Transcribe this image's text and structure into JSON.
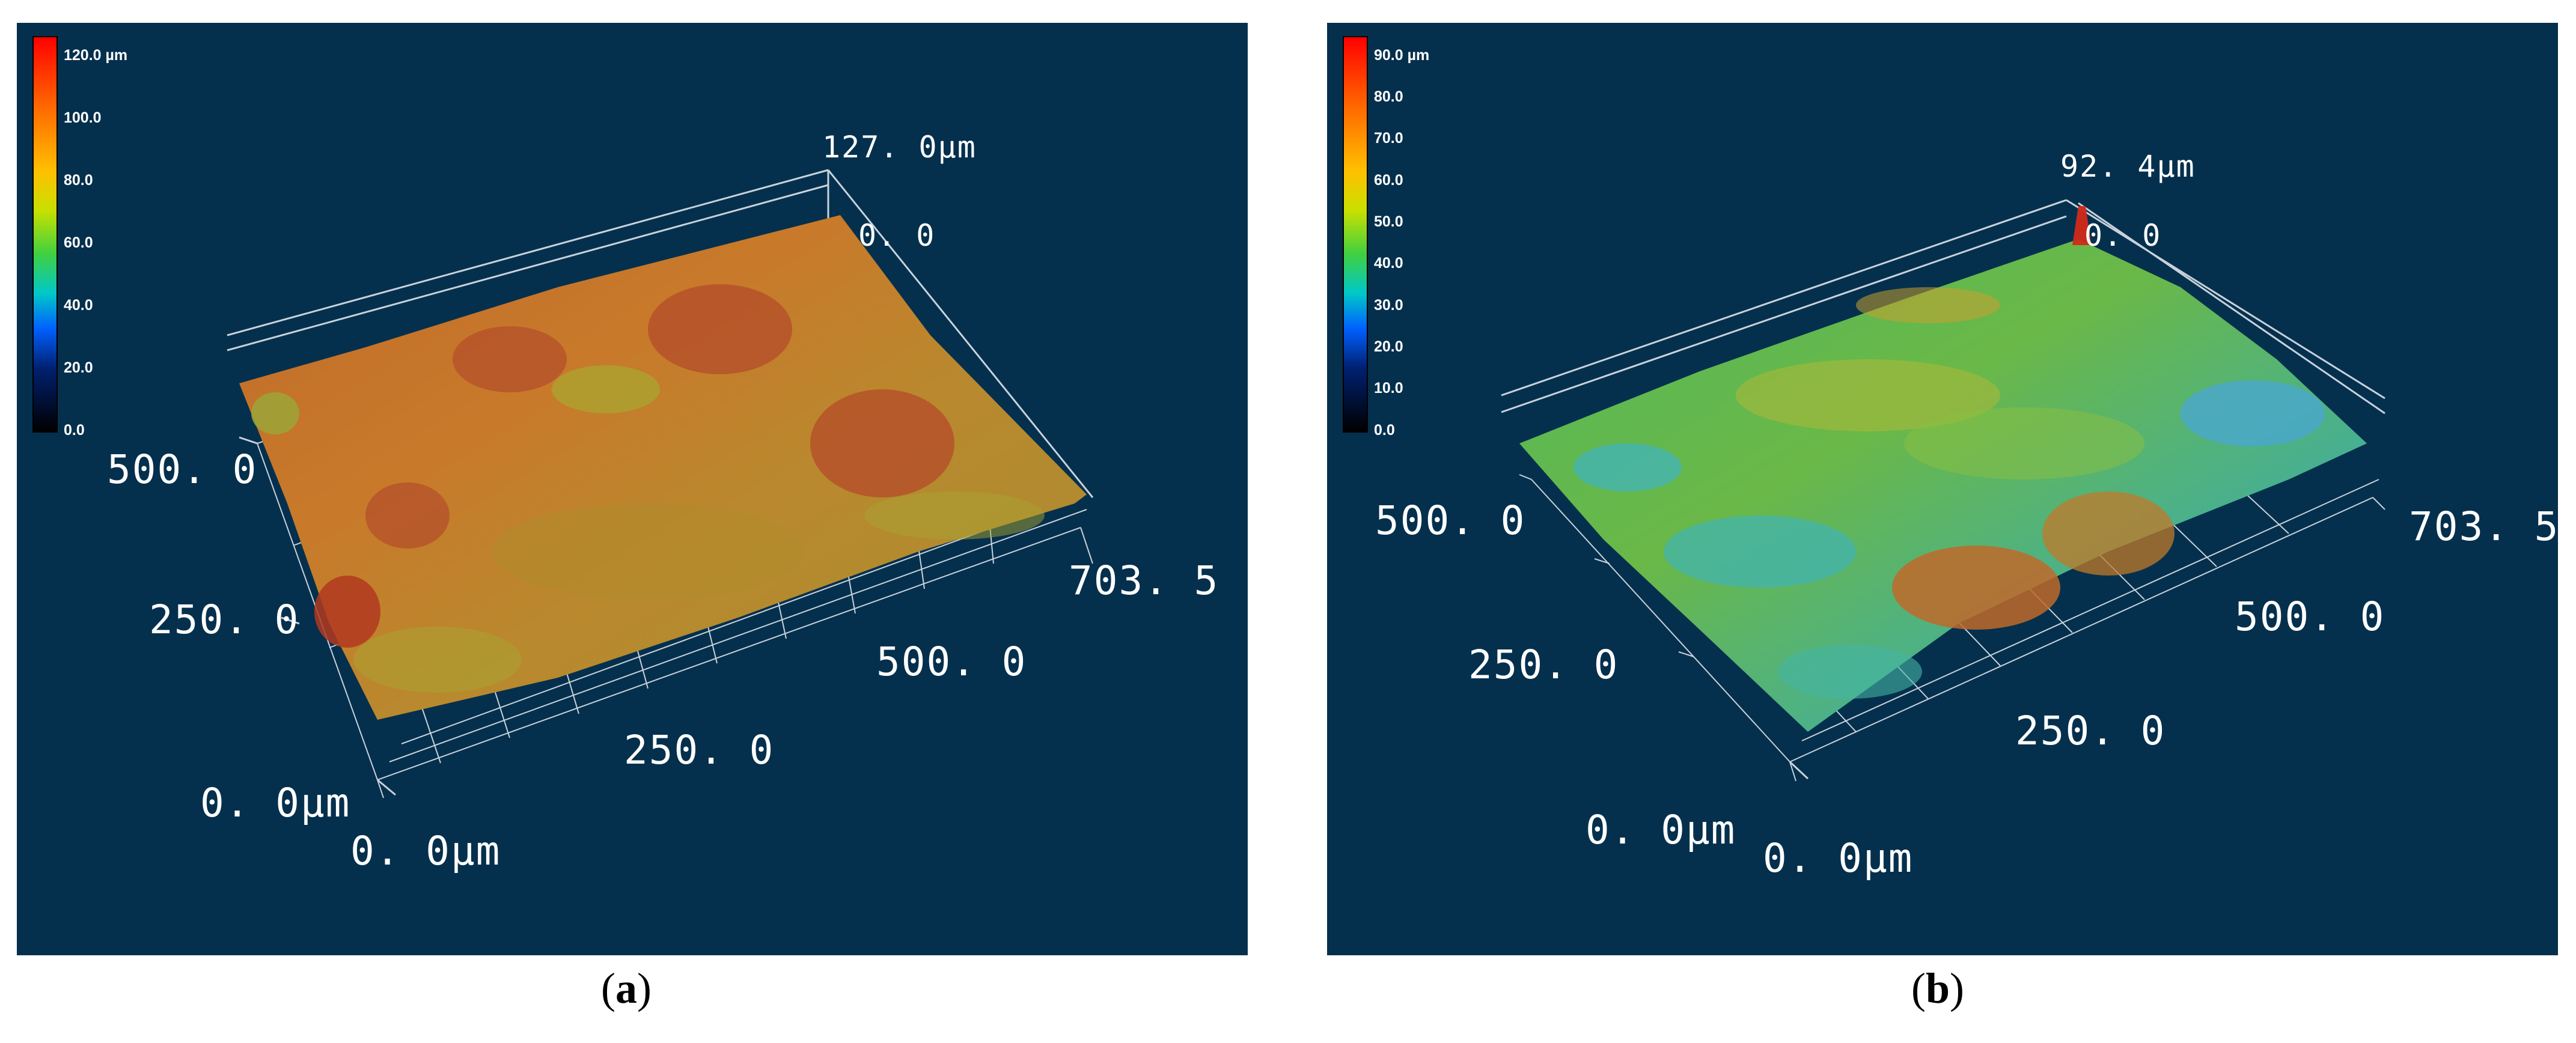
{
  "panels": [
    {
      "id": "a",
      "caption_letter": "a",
      "scale_ticks": [
        "120.0 µm",
        "100.0",
        "80.0",
        "60.0",
        "40.0",
        "20.0",
        "0.0"
      ],
      "z_max_label": "127. 0µm",
      "z_zero_label": "0. 0",
      "y_tick_labels": [
        "500. 0",
        "250. 0"
      ],
      "x_tick_labels": [
        "250. 0",
        "500. 0",
        "703. 5"
      ],
      "y_origin_label": "0. 0µm",
      "x_origin_label": "0. 0µm",
      "dominant_surface_color": "#c46a22"
    },
    {
      "id": "b",
      "caption_letter": "b",
      "scale_ticks": [
        "90.0 µm",
        "80.0",
        "70.0",
        "60.0",
        "50.0",
        "40.0",
        "30.0",
        "20.0",
        "10.0",
        "0.0"
      ],
      "z_max_label": "92. 4µm",
      "z_zero_label": "0. 0",
      "y_tick_labels": [
        "500. 0",
        "250. 0"
      ],
      "x_tick_labels": [
        "250. 0",
        "500. 0",
        "703. 5"
      ],
      "y_origin_label": "0. 0µm",
      "x_origin_label": "0. 0µm",
      "dominant_surface_color": "#3cb450"
    }
  ],
  "colors": {
    "background": "#05304d",
    "grid": "#c8d2dc",
    "label": "#ffffff"
  }
}
